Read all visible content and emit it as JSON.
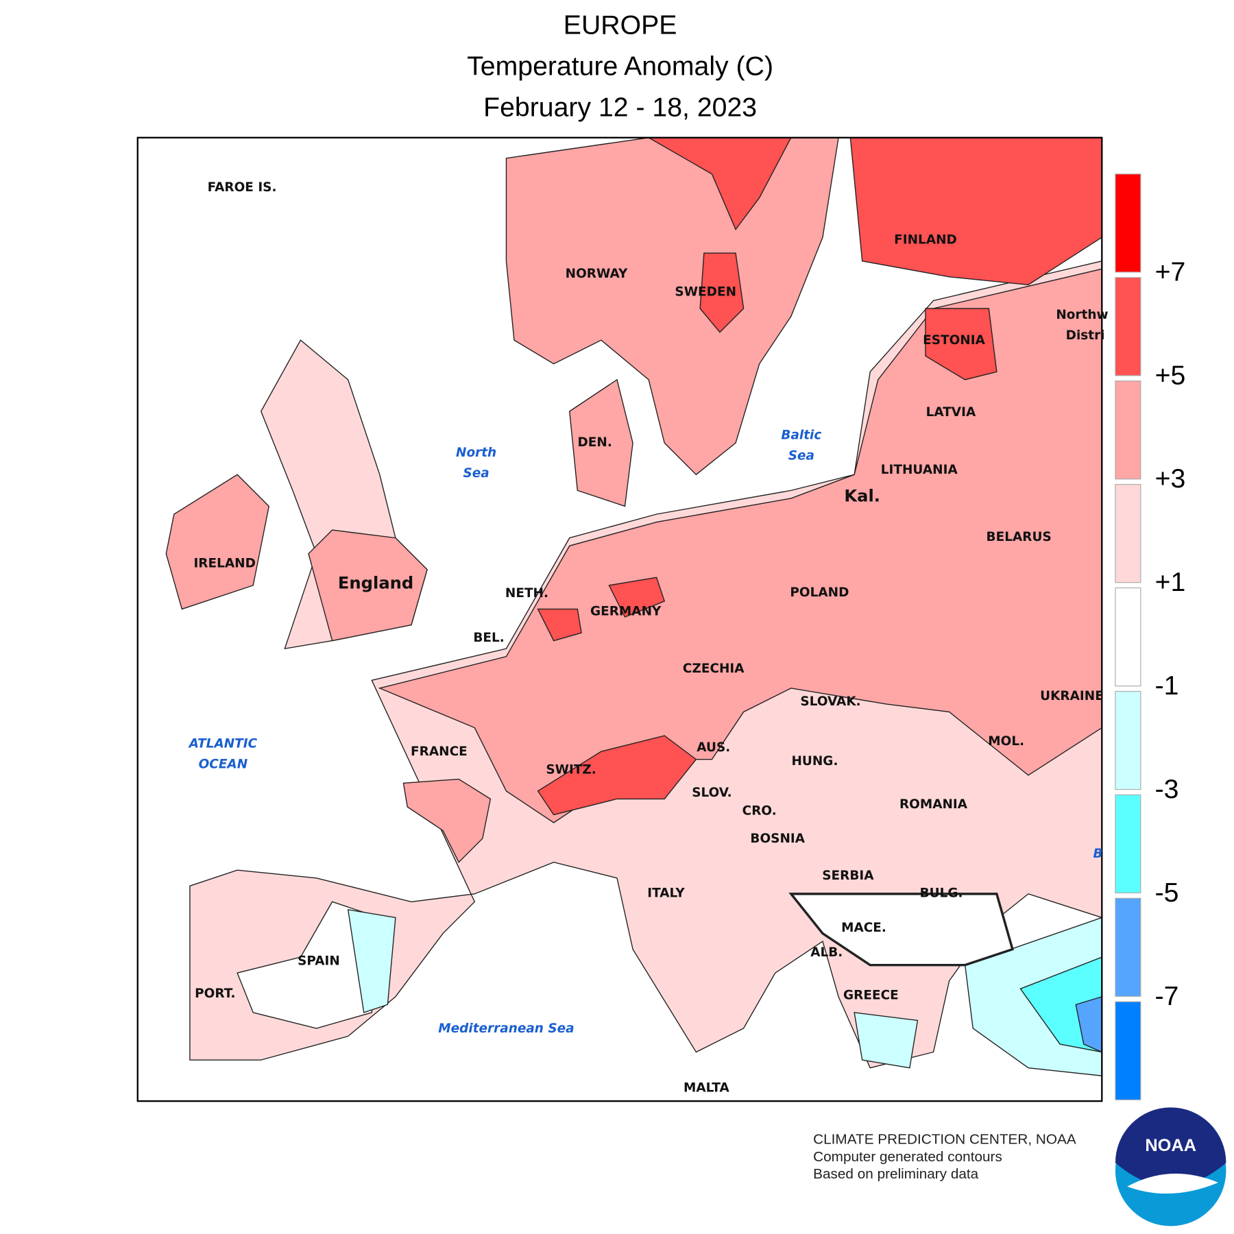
{
  "header": {
    "title": "EUROPE",
    "subtitle": "Temperature Anomaly (C)",
    "period": "February 12 - 18, 2023"
  },
  "map": {
    "labels": [
      "FAROE IS.",
      "NORWAY",
      "SWEDEN",
      "FINLAND",
      "ESTONIA",
      "Northw",
      "Distri",
      "LATVIA",
      "LITHUANIA",
      "Kal.",
      "BELARUS",
      "POLAND",
      "UKRAINE",
      "IRELAND",
      "England",
      "NETH.",
      "GERMANY",
      "BEL.",
      "CZECHIA",
      "SLOVAK.",
      "DEN.",
      "FRANCE",
      "AUS.",
      "HUNG.",
      "MOL.",
      "SWITZ.",
      "SLOV.",
      "CRO.",
      "ROMANIA",
      "BOSNIA",
      "SERBIA",
      "ITALY",
      "BULG.",
      "MACE.",
      "ALB.",
      "SPAIN",
      "PORT.",
      "GREECE",
      "MALTA"
    ],
    "seas": [
      [
        "North",
        "Sea"
      ],
      [
        "Baltic",
        "Sea"
      ],
      [
        "ATLANTIC",
        "OCEAN"
      ],
      [
        "Mediterranean Sea"
      ],
      [
        "B"
      ]
    ]
  },
  "legend": {
    "colors": [
      "#ff0000",
      "#ff5252",
      "#ffa6a6",
      "#ffd9d9",
      "#ffffff",
      "#ccffff",
      "#5cffff",
      "#55a5ff",
      "#0080ff"
    ],
    "ticks": [
      "+7",
      "+5",
      "+3",
      "+1",
      "-1",
      "-3",
      "-5",
      "-7"
    ]
  },
  "footer": [
    "CLIMATE PREDICTION CENTER, NOAA",
    "Computer generated contours",
    "Based on preliminary data"
  ],
  "logo": "NOAA"
}
